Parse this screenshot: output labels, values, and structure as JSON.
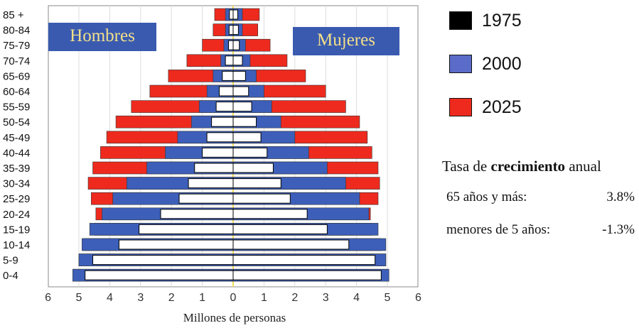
{
  "chart_data": {
    "type": "bar",
    "subtype": "population-pyramid",
    "xlabel": "Millones de personas",
    "x_ticks": [
      "6",
      "5",
      "4",
      "3",
      "2",
      "1",
      "0",
      "1",
      "2",
      "3",
      "4",
      "5",
      "6"
    ],
    "xlim": [
      -6,
      6
    ],
    "grid": true,
    "categories": [
      "85 +",
      "80-84",
      "75-79",
      "70-74",
      "65-69",
      "60-64",
      "55-59",
      "50-54",
      "45-49",
      "40-44",
      "35-39",
      "30-34",
      "25-29",
      "20-24",
      "15-19",
      "10-14",
      "5-9",
      "0-4"
    ],
    "left_group": "Hombres",
    "right_group": "Mujeres",
    "series": [
      {
        "name": "2025",
        "color": "#ee2a1e",
        "hombres": [
          0.6,
          0.65,
          1.0,
          1.5,
          2.1,
          2.7,
          3.3,
          3.8,
          4.1,
          4.3,
          4.55,
          4.7,
          4.6,
          4.45,
          4.5,
          4.85,
          5.0,
          5.2
        ],
        "mujeres": [
          0.85,
          0.8,
          1.2,
          1.75,
          2.35,
          3.0,
          3.65,
          4.1,
          4.35,
          4.5,
          4.7,
          4.75,
          4.7,
          4.45,
          4.5,
          4.8,
          4.95,
          5.05
        ]
      },
      {
        "name": "2000",
        "color": "#3d5fba",
        "hombres": [
          0.25,
          0.25,
          0.3,
          0.4,
          0.65,
          0.85,
          1.1,
          1.35,
          1.8,
          2.2,
          2.8,
          3.45,
          3.9,
          4.25,
          4.65,
          4.9,
          5.0,
          5.2
        ],
        "mujeres": [
          0.3,
          0.3,
          0.4,
          0.55,
          0.75,
          1.0,
          1.25,
          1.55,
          2.0,
          2.45,
          3.05,
          3.65,
          4.1,
          4.4,
          4.7,
          4.95,
          4.95,
          5.05
        ]
      },
      {
        "name": "1975",
        "color": "#000000",
        "hombres": [
          0.12,
          0.13,
          0.15,
          0.25,
          0.35,
          0.45,
          0.55,
          0.7,
          0.85,
          1.0,
          1.25,
          1.45,
          1.75,
          2.35,
          3.05,
          3.7,
          4.55,
          4.8
        ],
        "mujeres": [
          0.15,
          0.17,
          0.2,
          0.3,
          0.4,
          0.5,
          0.6,
          0.75,
          0.9,
          1.1,
          1.3,
          1.55,
          1.85,
          2.4,
          3.05,
          3.75,
          4.6,
          4.8
        ]
      }
    ]
  },
  "legend": [
    {
      "label": "1975",
      "color": "#000000"
    },
    {
      "label": "2000",
      "color": "#5a6cc8"
    },
    {
      "label": "2025",
      "color": "#ee2a1e"
    }
  ],
  "labels": {
    "hombres": "Hombres",
    "mujeres": "Mujeres"
  },
  "note": {
    "title_pre": "Tasa de ",
    "title_bold": "crecimiento",
    "title_post": " anual",
    "rows": [
      {
        "label": "65 años y más:",
        "value": "3.8%"
      },
      {
        "label": "menores de 5 años:",
        "value": "-1.3%"
      }
    ]
  }
}
